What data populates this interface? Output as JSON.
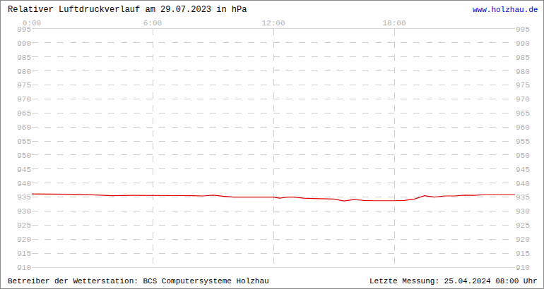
{
  "chart_data": {
    "type": "line",
    "title": "Relativer Luftdruckverlauf am 29.07.2023 in hPa",
    "annotations": {
      "top_right": "www.holzhau.de",
      "bottom_left": "Betreiber der Wetterstation: BCS Computersysteme Holzhau",
      "bottom_right": "Letzte Messung: 25.04.2024 08:00 Uhr"
    },
    "x": [
      0,
      1,
      2,
      3,
      4,
      5,
      6,
      7,
      8,
      8.5,
      9,
      9.5,
      10,
      11,
      12,
      12.3,
      12.7,
      13,
      13.5,
      14,
      15,
      15.5,
      16,
      16.5,
      17,
      18,
      18.5,
      19,
      19.5,
      20,
      20.5,
      21,
      21.5,
      22,
      22.5,
      23,
      24
    ],
    "values": [
      936.1,
      936.1,
      936,
      935.8,
      935.5,
      935.6,
      935.6,
      935.6,
      935.5,
      935.4,
      935.7,
      935.3,
      935,
      935,
      935,
      934.6,
      935,
      935,
      934.6,
      934.5,
      934.3,
      933.6,
      934.1,
      933.8,
      933.7,
      933.7,
      933.8,
      934.3,
      935.5,
      935,
      935.4,
      935.4,
      935.7,
      935.6,
      935.9,
      935.9,
      935.9
    ],
    "color": "#dd0000",
    "xlim": [
      0,
      24
    ],
    "xticks": [
      {
        "value": 0,
        "label": "0:00"
      },
      {
        "value": 6,
        "label": "6:00"
      },
      {
        "value": 12,
        "label": "12:00"
      },
      {
        "value": 18,
        "label": "18:00"
      }
    ],
    "ylim": [
      910,
      995
    ],
    "yticks": [
      910,
      915,
      920,
      925,
      930,
      935,
      940,
      945,
      950,
      955,
      960,
      965,
      970,
      975,
      980,
      985,
      990,
      995
    ],
    "grid": true
  }
}
